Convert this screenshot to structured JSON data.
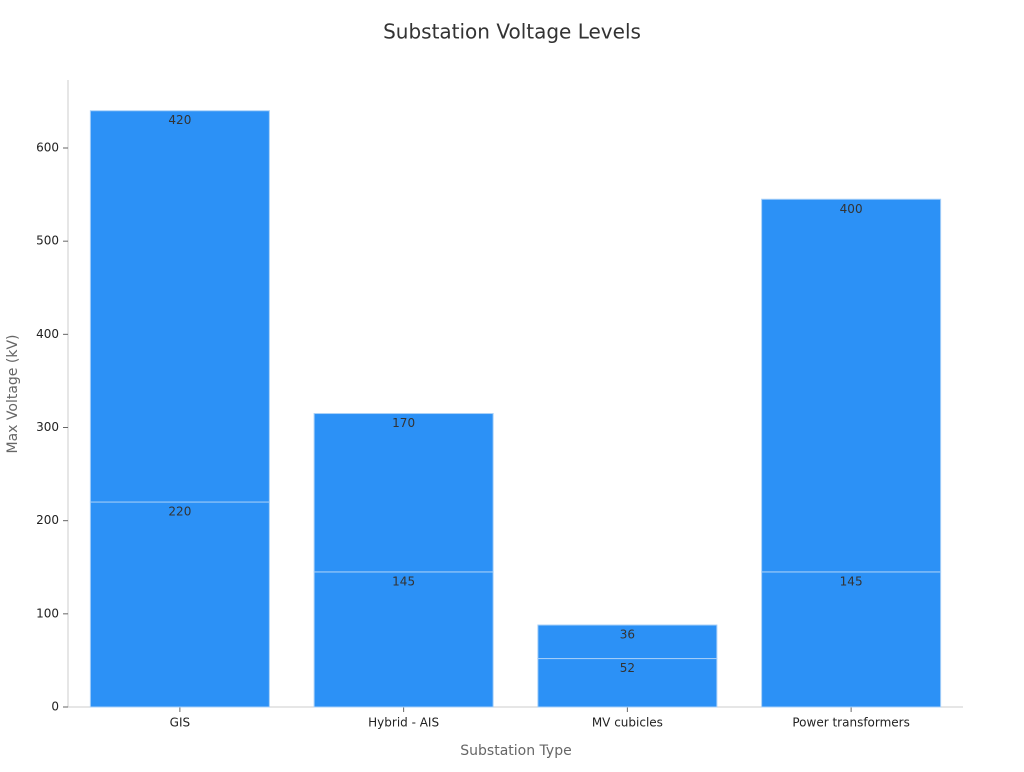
{
  "chart_data": {
    "type": "stacked_bar",
    "title": "Substation Voltage Levels",
    "x_label": "Substation Type",
    "y_label": "Max Voltage (kV)",
    "categories": [
      "GIS",
      "Hybrid - AIS",
      "MV cubicles",
      "Power transformers"
    ],
    "series": [
      {
        "color": "#2c91f6",
        "values": [
          220,
          145,
          52,
          145
        ]
      },
      {
        "color": "#2c91f6",
        "values": [
          420,
          170,
          36,
          400
        ]
      }
    ],
    "ylim": [
      0,
      673
    ],
    "yticks": [
      0,
      100,
      200,
      300,
      400,
      500,
      600
    ],
    "grid": false
  }
}
